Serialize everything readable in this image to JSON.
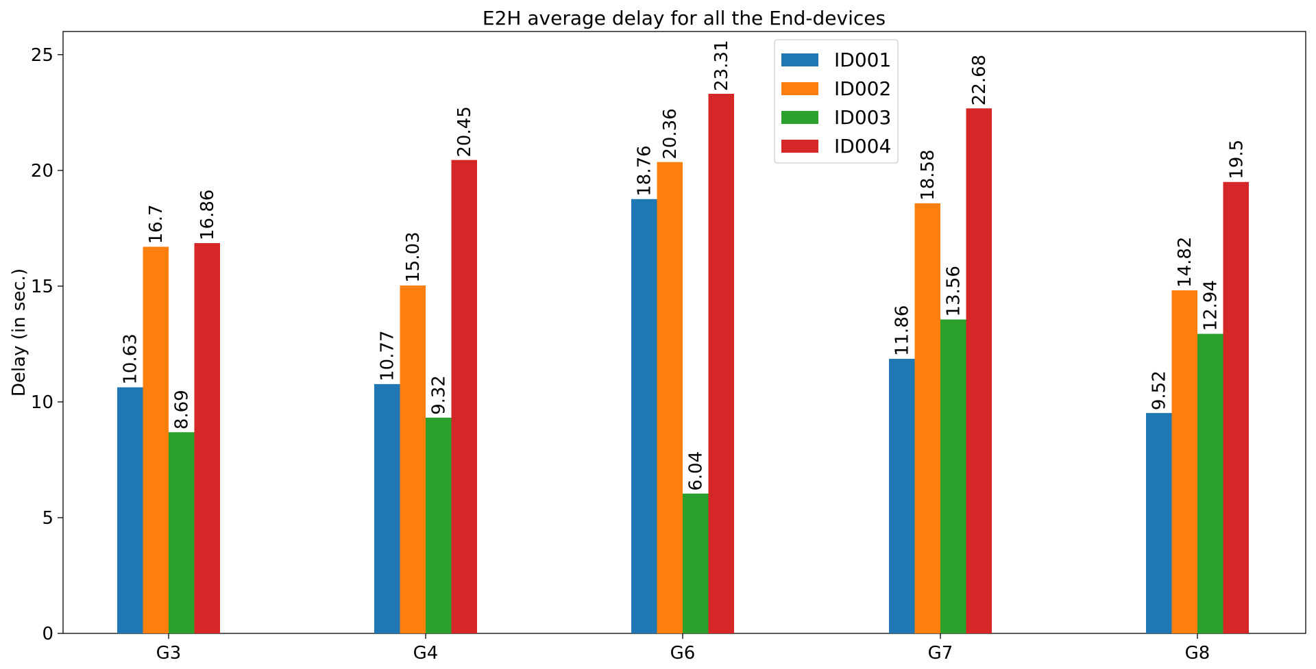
{
  "chart_data": {
    "type": "bar",
    "title": "E2H average delay for all the End-devices",
    "xlabel": "",
    "ylabel": "Delay (in sec.)",
    "ylim": [
      0,
      26
    ],
    "yticks": [
      0,
      5,
      10,
      15,
      20,
      25
    ],
    "categories": [
      "G3",
      "G4",
      "G6",
      "G7",
      "G8"
    ],
    "series": [
      {
        "name": "ID001",
        "color": "#1f77b4",
        "values": [
          10.63,
          10.77,
          18.76,
          11.86,
          9.52
        ]
      },
      {
        "name": "ID002",
        "color": "#ff7f0e",
        "values": [
          16.7,
          15.03,
          20.36,
          18.58,
          14.82
        ]
      },
      {
        "name": "ID003",
        "color": "#2ca02c",
        "values": [
          8.69,
          9.32,
          6.04,
          13.56,
          12.94
        ]
      },
      {
        "name": "ID004",
        "color": "#d62728",
        "values": [
          16.86,
          20.45,
          23.31,
          22.68,
          19.5
        ]
      }
    ],
    "data_labels": [
      [
        "10.63",
        "10.77",
        "18.76",
        "11.86",
        "9.52"
      ],
      [
        "16.7",
        "15.03",
        "20.36",
        "18.58",
        "14.82"
      ],
      [
        "8.69",
        "9.32",
        "6.04",
        "13.56",
        "12.94"
      ],
      [
        "16.86",
        "20.45",
        "23.31",
        "22.68",
        "19.5"
      ]
    ],
    "grid": false,
    "legend_position": "upper-center"
  }
}
